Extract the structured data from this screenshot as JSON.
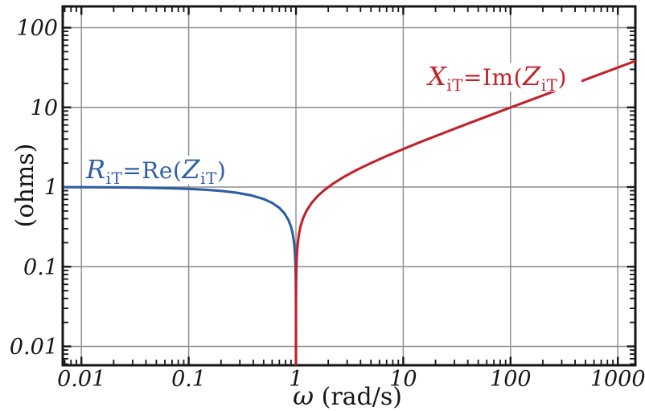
{
  "figure": {
    "background": "#ffffff",
    "frame_color": "#161616",
    "grid_color": "#8b8b8b",
    "text_color": "#161616"
  },
  "chart_data": {
    "type": "line",
    "title": "",
    "x_scale": "log",
    "y_scale": "log",
    "xlabel": "ω (rad/s)",
    "xlabel_symbol": "ω",
    "xlabel_units": " (rad/s)",
    "ylabel": "(ohms)",
    "x_range": [
      0.00696,
      1513
    ],
    "y_range": [
      0.0058,
      185
    ],
    "grid": true,
    "legend": "inline-annotations",
    "x_ticks": [
      {
        "label": "0.01",
        "value": 0.01
      },
      {
        "label": "0.1",
        "value": 0.1
      },
      {
        "label": "1",
        "value": 1
      },
      {
        "label": "10",
        "value": 10
      },
      {
        "label": "100",
        "value": 100
      },
      {
        "label": "1000",
        "value": 1000
      }
    ],
    "y_ticks": [
      {
        "label": "0.01",
        "value": 0.01
      },
      {
        "label": "0.1",
        "value": 0.1
      },
      {
        "label": "1",
        "value": 1
      },
      {
        "label": "10",
        "value": 10
      },
      {
        "label": "100",
        "value": 100
      }
    ],
    "series": [
      {
        "name": "R_iT = Re(Z_iT)",
        "role": "real-part",
        "color": "#2e5ea4",
        "label_parts": {
          "var": "R",
          "var_sub": "iT",
          "eq_fn": "=Re(",
          "arg": "Z",
          "arg_sub": "iT",
          "close": ")"
        },
        "points": [
          [
            0.007,
            0.9965
          ],
          [
            0.01,
            0.995
          ],
          [
            0.015,
            0.9925
          ],
          [
            0.022,
            0.9889
          ],
          [
            0.033,
            0.9834
          ],
          [
            0.047,
            0.9762
          ],
          [
            0.068,
            0.9654
          ],
          [
            0.1,
            0.9487
          ],
          [
            0.14,
            0.9274
          ],
          [
            0.2,
            0.8944
          ],
          [
            0.28,
            0.8485
          ],
          [
            0.38,
            0.7874
          ],
          [
            0.5,
            0.7071
          ],
          [
            0.6,
            0.6325
          ],
          [
            0.7,
            0.5477
          ],
          [
            0.78,
            0.469
          ],
          [
            0.85,
            0.3873
          ],
          [
            0.9,
            0.3162
          ],
          [
            0.93,
            0.2646
          ],
          [
            0.955,
            0.2121
          ],
          [
            0.97,
            0.1732
          ],
          [
            0.98,
            0.1414
          ],
          [
            0.987,
            0.114
          ],
          [
            0.992,
            0.0894
          ],
          [
            0.995,
            0.0707
          ],
          [
            0.997,
            0.0548
          ],
          [
            0.9985,
            0.0387
          ],
          [
            0.9992,
            0.0283
          ],
          [
            0.9996,
            0.02
          ],
          [
            0.9998,
            0.0141
          ],
          [
            0.9999,
            0.01
          ],
          [
            0.99995,
            0.00707
          ],
          [
            0.999966,
            0.00583
          ]
        ]
      },
      {
        "name": "X_iT = Im(Z_iT)",
        "role": "imaginary-part",
        "color": "#c32128",
        "label_parts": {
          "var": "X",
          "var_sub": "iT",
          "eq_fn": "=Im(",
          "arg": "Z",
          "arg_sub": "iT",
          "close": ")"
        },
        "points": [
          [
            1.0000336,
            0.0058
          ],
          [
            1.0001,
            0.01
          ],
          [
            1.0002,
            0.0141
          ],
          [
            1.0005,
            0.0224
          ],
          [
            1.001,
            0.0316
          ],
          [
            1.002,
            0.0447
          ],
          [
            1.004,
            0.0632
          ],
          [
            1.008,
            0.0894
          ],
          [
            1.015,
            0.1225
          ],
          [
            1.03,
            0.1732
          ],
          [
            1.06,
            0.2449
          ],
          [
            1.1,
            0.3162
          ],
          [
            1.16,
            0.4
          ],
          [
            1.25,
            0.5
          ],
          [
            1.4,
            0.6325
          ],
          [
            1.6,
            0.7746
          ],
          [
            1.85,
            0.922
          ],
          [
            2.2,
            1.0954
          ],
          [
            2.8,
            1.3416
          ],
          [
            3.6,
            1.6125
          ],
          [
            5,
            2
          ],
          [
            7,
            2.449
          ],
          [
            10,
            3
          ],
          [
            15,
            3.742
          ],
          [
            22,
            4.583
          ],
          [
            33,
            5.657
          ],
          [
            50,
            7
          ],
          [
            80,
            8.888
          ],
          [
            120,
            10.909
          ],
          [
            200,
            14.107
          ],
          [
            330,
            18.138
          ],
          [
            550,
            23.431
          ],
          [
            900,
            29.983
          ],
          [
            1513,
            38.885
          ]
        ]
      }
    ]
  }
}
